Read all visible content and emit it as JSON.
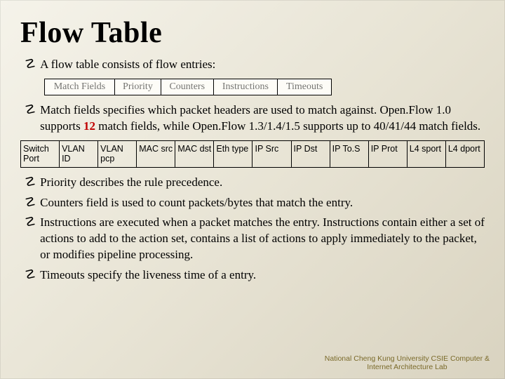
{
  "title": "Flow Table",
  "bullets": {
    "b1": "A flow table consists of flow entries:",
    "b2_pre": "Match fields specifies which packet headers are used to match against. Open.Flow 1.0 supports ",
    "b2_bold": "12",
    "b2_post": " match fields, while Open.Flow 1.3/1.4/1.5 supports up to 40/41/44 match fields.",
    "b3": "Priority describes the rule precedence.",
    "b4": "Counters field is used to count packets/bytes that match the entry.",
    "b5": "Instructions are executed when a packet matches the entry. Instructions contain either a set of actions to add to the action set, contains a list of actions to apply immediately to the packet, or modifies pipeline processing.",
    "b6": "Timeouts specify the liveness time of a entry."
  },
  "components": {
    "cells": [
      "Match Fields",
      "Priority",
      "Counters",
      "Instructions",
      "Timeouts"
    ],
    "border_color": "#000000",
    "background_color": "#fdfcf7",
    "font_size": 14
  },
  "match_fields": {
    "cells": [
      "Switch Port",
      "VLAN ID",
      "VLAN pcp",
      "MAC src",
      "MAC dst",
      "Eth type",
      "IP Src",
      "IP Dst",
      "IP To.S",
      "IP Prot",
      "L4 sport",
      "L4 dport"
    ],
    "border_color": "#000000",
    "font_family": "Comic Sans MS",
    "font_size": 12.5
  },
  "footer": {
    "line1": "National Cheng Kung University CSIE Computer &",
    "line2": "Internet Architecture Lab",
    "color": "#7a6a2a",
    "font_size": 10.5
  },
  "style": {
    "background_gradient": [
      "#f5f3ea",
      "#e8e4d5",
      "#d9d3c0"
    ],
    "title_fontsize": 42,
    "body_fontsize": 17,
    "accent_color": "#c00000",
    "bullet_glyph": "☡"
  }
}
